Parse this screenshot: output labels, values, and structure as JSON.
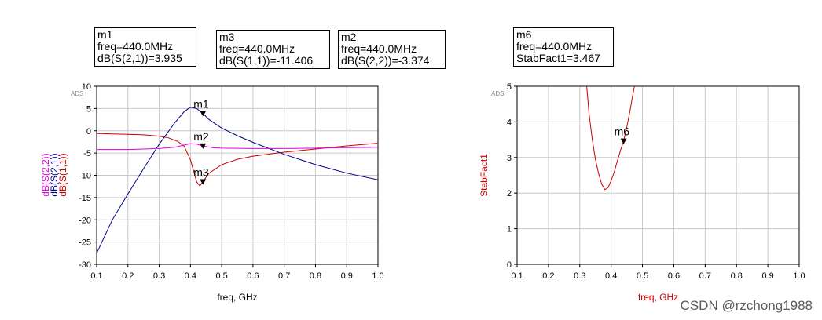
{
  "markers": {
    "m1": {
      "name": "m1",
      "freq": "freq=440.0MHz",
      "value": "dB(S(2,1))=3.935"
    },
    "m3": {
      "name": "m3",
      "freq": "freq=440.0MHz",
      "value": "dB(S(1,1))=-11.406"
    },
    "m2": {
      "name": "m2",
      "freq": "freq=440.0MHz",
      "value": "dB(S(2,2))=-3.374"
    },
    "m6": {
      "name": "m6",
      "freq": "freq=440.0MHz",
      "value": "StabFact1=3.467"
    }
  },
  "watermark": "CSDN @rzchong1988",
  "colors": {
    "s11": "#cc0000",
    "s21": "#00008b",
    "s22": "#e000e0",
    "stab": "#cc0000",
    "grid": "#c8c8c8"
  },
  "chart_data": [
    {
      "type": "line",
      "corner_label": "ADS",
      "xlabel": "freq, GHz",
      "ylabel": "",
      "xlim": [
        0.1,
        1.0
      ],
      "ylim": [
        -30,
        10
      ],
      "xticks": [
        "0.1",
        "0.2",
        "0.3",
        "0.4",
        "0.5",
        "0.6",
        "0.7",
        "0.8",
        "0.9",
        "1.0"
      ],
      "yticks": [
        "-30",
        "-25",
        "-20",
        "-15",
        "-10",
        "-5",
        "0",
        "5",
        "10"
      ],
      "grid": true,
      "legend_placement": "left-vertical",
      "series": [
        {
          "name": "dB(S(1,1))",
          "color": "#cc0000",
          "x": [
            0.1,
            0.15,
            0.2,
            0.25,
            0.3,
            0.33,
            0.36,
            0.38,
            0.4,
            0.41,
            0.42,
            0.43,
            0.44,
            0.46,
            0.5,
            0.55,
            0.6,
            0.7,
            0.8,
            0.9,
            1.0
          ],
          "y": [
            -0.6,
            -0.7,
            -0.8,
            -0.9,
            -1.2,
            -1.6,
            -2.4,
            -3.5,
            -6.5,
            -9.0,
            -11.5,
            -12.4,
            -11.4,
            -9.5,
            -7.6,
            -6.4,
            -5.7,
            -4.8,
            -4.1,
            -3.4,
            -2.8
          ]
        },
        {
          "name": "dB(S(2,1))",
          "color": "#00008b",
          "x": [
            0.1,
            0.15,
            0.2,
            0.25,
            0.3,
            0.35,
            0.38,
            0.4,
            0.42,
            0.44,
            0.46,
            0.5,
            0.55,
            0.6,
            0.7,
            0.8,
            0.9,
            1.0
          ],
          "y": [
            -27.5,
            -20.0,
            -14.2,
            -8.5,
            -3.0,
            1.8,
            4.3,
            5.3,
            5.0,
            3.9,
            2.5,
            0.6,
            -1.1,
            -2.6,
            -5.3,
            -7.6,
            -9.5,
            -11.0
          ],
          "labelled": true
        },
        {
          "name": "dB(S(2,2))",
          "color": "#e000e0",
          "x": [
            0.1,
            0.2,
            0.3,
            0.35,
            0.38,
            0.4,
            0.42,
            0.44,
            0.47,
            0.5,
            0.6,
            0.7,
            0.8,
            0.9,
            1.0
          ],
          "y": [
            -4.2,
            -4.2,
            -4.0,
            -3.7,
            -3.2,
            -2.9,
            -3.0,
            -3.4,
            -3.8,
            -3.9,
            -4.0,
            -4.0,
            -3.9,
            -3.8,
            -3.7
          ]
        }
      ],
      "markers": [
        {
          "label": "m1",
          "x": 0.44,
          "y": 3.935
        },
        {
          "label": "m2",
          "x": 0.44,
          "y": -3.374
        },
        {
          "label": "m3",
          "x": 0.44,
          "y": -11.406
        }
      ]
    },
    {
      "type": "line",
      "corner_label": "ADS",
      "xlabel": "freq, GHz",
      "ylabel": "StabFact1",
      "xlim": [
        0.1,
        1.0
      ],
      "ylim": [
        0,
        5
      ],
      "xticks": [
        "0.1",
        "0.2",
        "0.3",
        "0.4",
        "0.5",
        "0.6",
        "0.7",
        "0.8",
        "0.9",
        "1.0"
      ],
      "yticks": [
        "0",
        "1",
        "2",
        "3",
        "4",
        "5"
      ],
      "grid": true,
      "series": [
        {
          "name": "StabFact1",
          "color": "#cc0000",
          "x": [
            0.322,
            0.33,
            0.34,
            0.35,
            0.36,
            0.37,
            0.38,
            0.39,
            0.4,
            0.41,
            0.42,
            0.43,
            0.44,
            0.45,
            0.46,
            0.47,
            0.474
          ],
          "y": [
            5.0,
            4.2,
            3.5,
            2.95,
            2.55,
            2.25,
            2.1,
            2.15,
            2.35,
            2.6,
            2.9,
            3.2,
            3.467,
            3.85,
            4.3,
            4.8,
            5.0
          ]
        }
      ],
      "markers": [
        {
          "label": "m6",
          "x": 0.44,
          "y": 3.467
        }
      ]
    }
  ]
}
